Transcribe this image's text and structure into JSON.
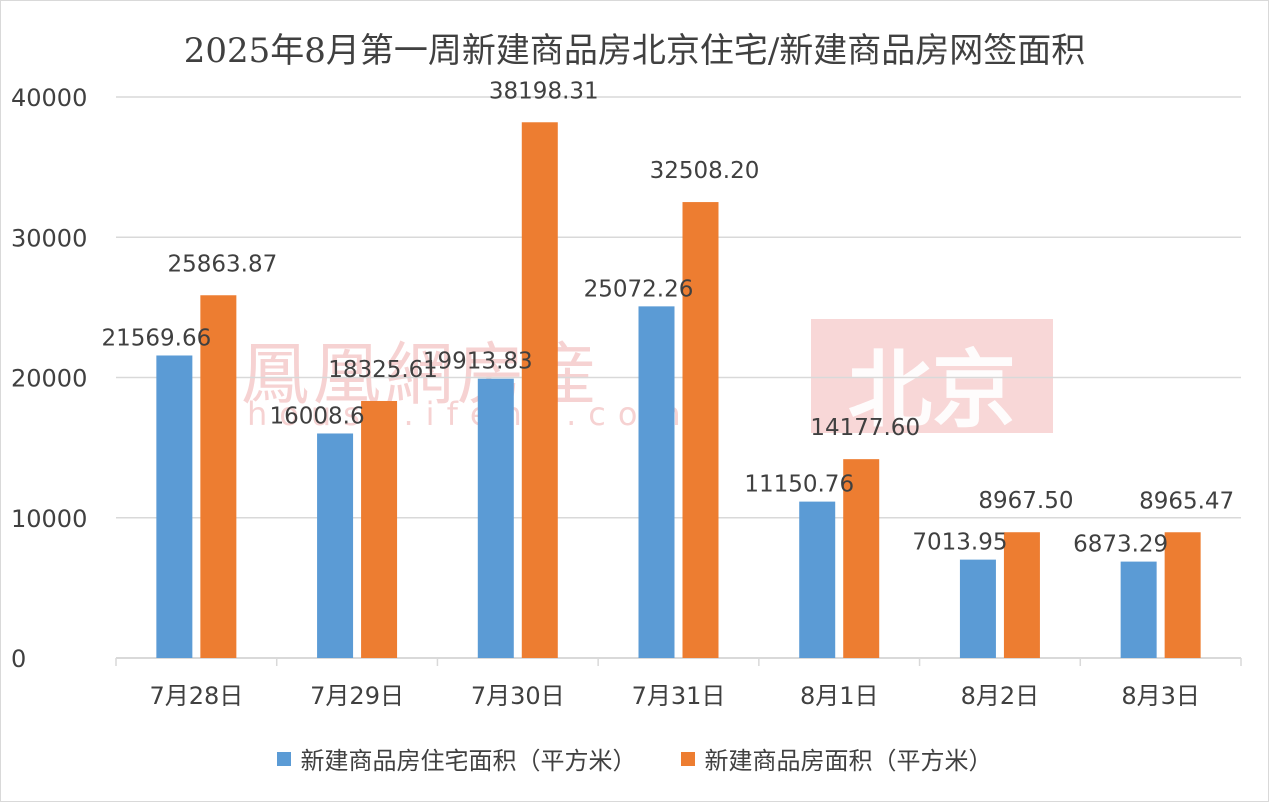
{
  "title": "2025年8月第一周新建商品房北京住宅/新建商品房网签面积",
  "watermark": {
    "brand": "鳳凰網房産",
    "site": "house.ifeng.com",
    "city": "北京"
  },
  "colors": {
    "series1": "#5b9bd5",
    "series2": "#ed7d31",
    "grid": "#d9d9d9",
    "text": "#404040"
  },
  "chart_data": {
    "type": "bar",
    "categories": [
      "7月28日",
      "7月29日",
      "7月30日",
      "7月31日",
      "8月1日",
      "8月2日",
      "8月3日"
    ],
    "series": [
      {
        "name": "新建商品房住宅面积（平方米）",
        "values": [
          21569.66,
          16008.6,
          19913.83,
          25072.26,
          11150.76,
          7013.95,
          6873.29
        ],
        "labels": [
          "21569.66",
          "16008.6",
          "19913.83",
          "25072.26",
          "11150.76",
          "7013.95",
          "6873.29"
        ]
      },
      {
        "name": "新建商品房面积（平方米）",
        "values": [
          25863.87,
          18325.61,
          38198.31,
          32508.2,
          14177.6,
          8967.5,
          8965.47
        ],
        "labels": [
          "25863.87",
          "18325.61",
          "38198.31",
          "32508.20",
          "14177.60",
          "8967.50",
          "8965.47"
        ]
      }
    ],
    "ylim": [
      0,
      40000
    ],
    "yticks": [
      "0",
      "10000",
      "20000",
      "30000",
      "40000"
    ],
    "grid": true,
    "legend": "bottom"
  }
}
